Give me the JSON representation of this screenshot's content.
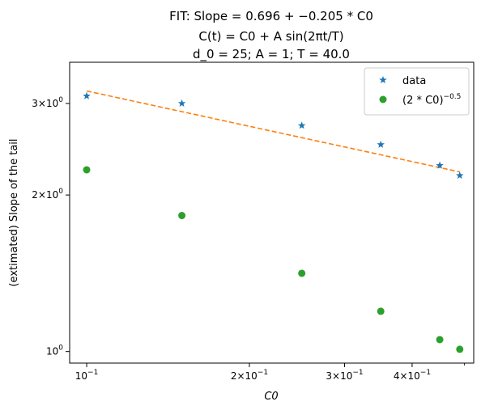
{
  "chart_data": {
    "type": "scatter",
    "title_lines": [
      "FIT: Slope = 0.696 + −0.205 * C0",
      "C(t) = C0 + A sin(2πt/T)",
      "d_0 = 25; A = 1; T = 40.0"
    ],
    "xlabel": "C0",
    "ylabel": "(extimated) Slope of the tail",
    "xscale": "log",
    "yscale": "log",
    "xlim": [
      0.093,
      0.52
    ],
    "ylim": [
      0.95,
      3.6
    ],
    "xticks": [
      {
        "value": 0.1,
        "base": "10",
        "exp": "−1"
      },
      {
        "value": 0.2,
        "base": "2×10",
        "exp": "−1"
      },
      {
        "value": 0.3,
        "base": "3×10",
        "exp": "−1"
      },
      {
        "value": 0.4,
        "base": "4×10",
        "exp": "−1"
      }
    ],
    "yticks": [
      {
        "value": 1,
        "base": "10",
        "exp": "0"
      },
      {
        "value": 2,
        "base": "2×10",
        "exp": "0"
      },
      {
        "value": 3,
        "base": "3×10",
        "exp": "0"
      }
    ],
    "legend_position": "top-right",
    "grid": false,
    "series": [
      {
        "name": "data",
        "kind": "marker-star",
        "color": "#1f77b4",
        "x": [
          0.1,
          0.15,
          0.25,
          0.35,
          0.45,
          0.49
        ],
        "y": [
          3.1,
          3.0,
          2.72,
          2.5,
          2.28,
          2.18
        ]
      },
      {
        "name_base": "(2 * C0)",
        "name_exp": "−0.5",
        "kind": "marker-circle",
        "color": "#2ca02c",
        "x": [
          0.1,
          0.15,
          0.25,
          0.35,
          0.45,
          0.49
        ],
        "y": [
          2.236,
          1.826,
          1.414,
          1.195,
          1.054,
          1.01
        ]
      },
      {
        "kind": "fit-line",
        "style": "dashed",
        "color": "#ff7f0e",
        "x": [
          0.1,
          0.49
        ],
        "y": [
          3.17,
          2.215
        ]
      }
    ]
  }
}
